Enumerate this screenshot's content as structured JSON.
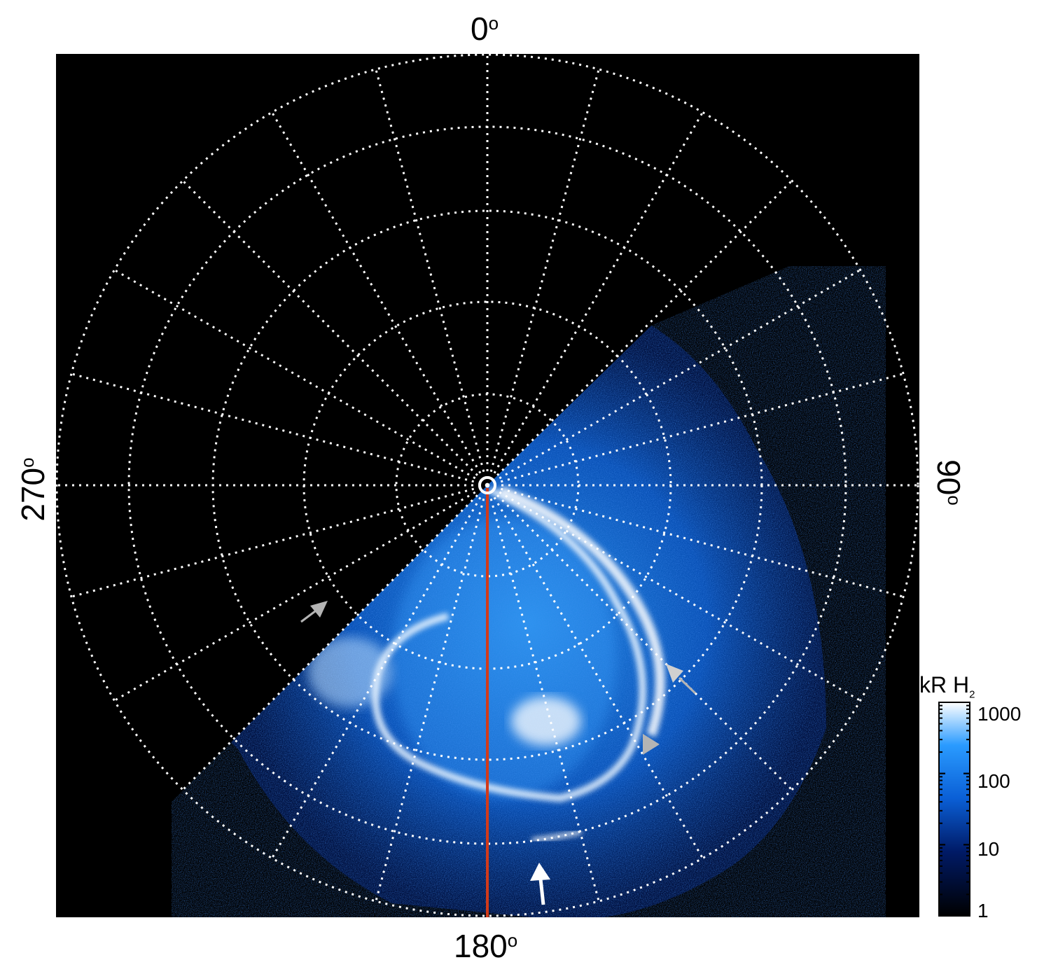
{
  "labels": {
    "top": "0",
    "bottom": "180",
    "left": "270",
    "right": "90",
    "degree_symbol": "o"
  },
  "colorbar": {
    "title_main": "kR H",
    "title_sub": "2",
    "ticks": [
      "1000",
      "100",
      "10",
      "1"
    ],
    "colors": {
      "low": "#000000",
      "mid_low": "#001a66",
      "mid": "#0a5fd6",
      "mid_high": "#2a9bff",
      "high": "#ffffff"
    }
  },
  "colors": {
    "background": "#000000",
    "grid": "#ffffff",
    "meridian_line": "#d23a1a",
    "arrow_white": "#ffffff",
    "arrow_grey": "#b4b4b4"
  },
  "icons": [
    "arrow-white",
    "arrow-grey",
    "triangle-grey"
  ]
}
